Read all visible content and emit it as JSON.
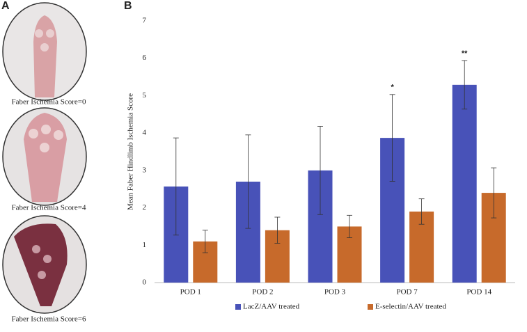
{
  "panel_labels": [
    "A",
    "B"
  ],
  "photo_captions": [
    "Faber Ischemia Score=0",
    "Faber Ischemia Score=4",
    "Faber Ischemia Score=6"
  ],
  "chart_data": {
    "type": "bar",
    "ylabel": "Mean Faber Hindlimb Ischemia Score",
    "categories": [
      "POD 1",
      "POD 2",
      "POD 3",
      "POD 7",
      "POD 14"
    ],
    "series": [
      {
        "name": "LacZ/AAV treated",
        "color": "#4852b8",
        "values": [
          2.57,
          2.7,
          3.0,
          3.87,
          5.29
        ],
        "errors": [
          1.3,
          1.25,
          1.18,
          1.16,
          0.65
        ],
        "annotations": [
          null,
          null,
          null,
          "*",
          "**"
        ]
      },
      {
        "name": "E-selectin/AAV treated",
        "color": "#c76a2b",
        "values": [
          1.1,
          1.4,
          1.5,
          1.9,
          2.4
        ],
        "errors": [
          0.3,
          0.35,
          0.3,
          0.34,
          0.67
        ]
      }
    ],
    "ylim": [
      0,
      7
    ],
    "yticks": [
      0,
      1,
      2,
      3,
      4,
      5,
      6,
      7
    ],
    "grid": false,
    "legend": "bottom"
  }
}
